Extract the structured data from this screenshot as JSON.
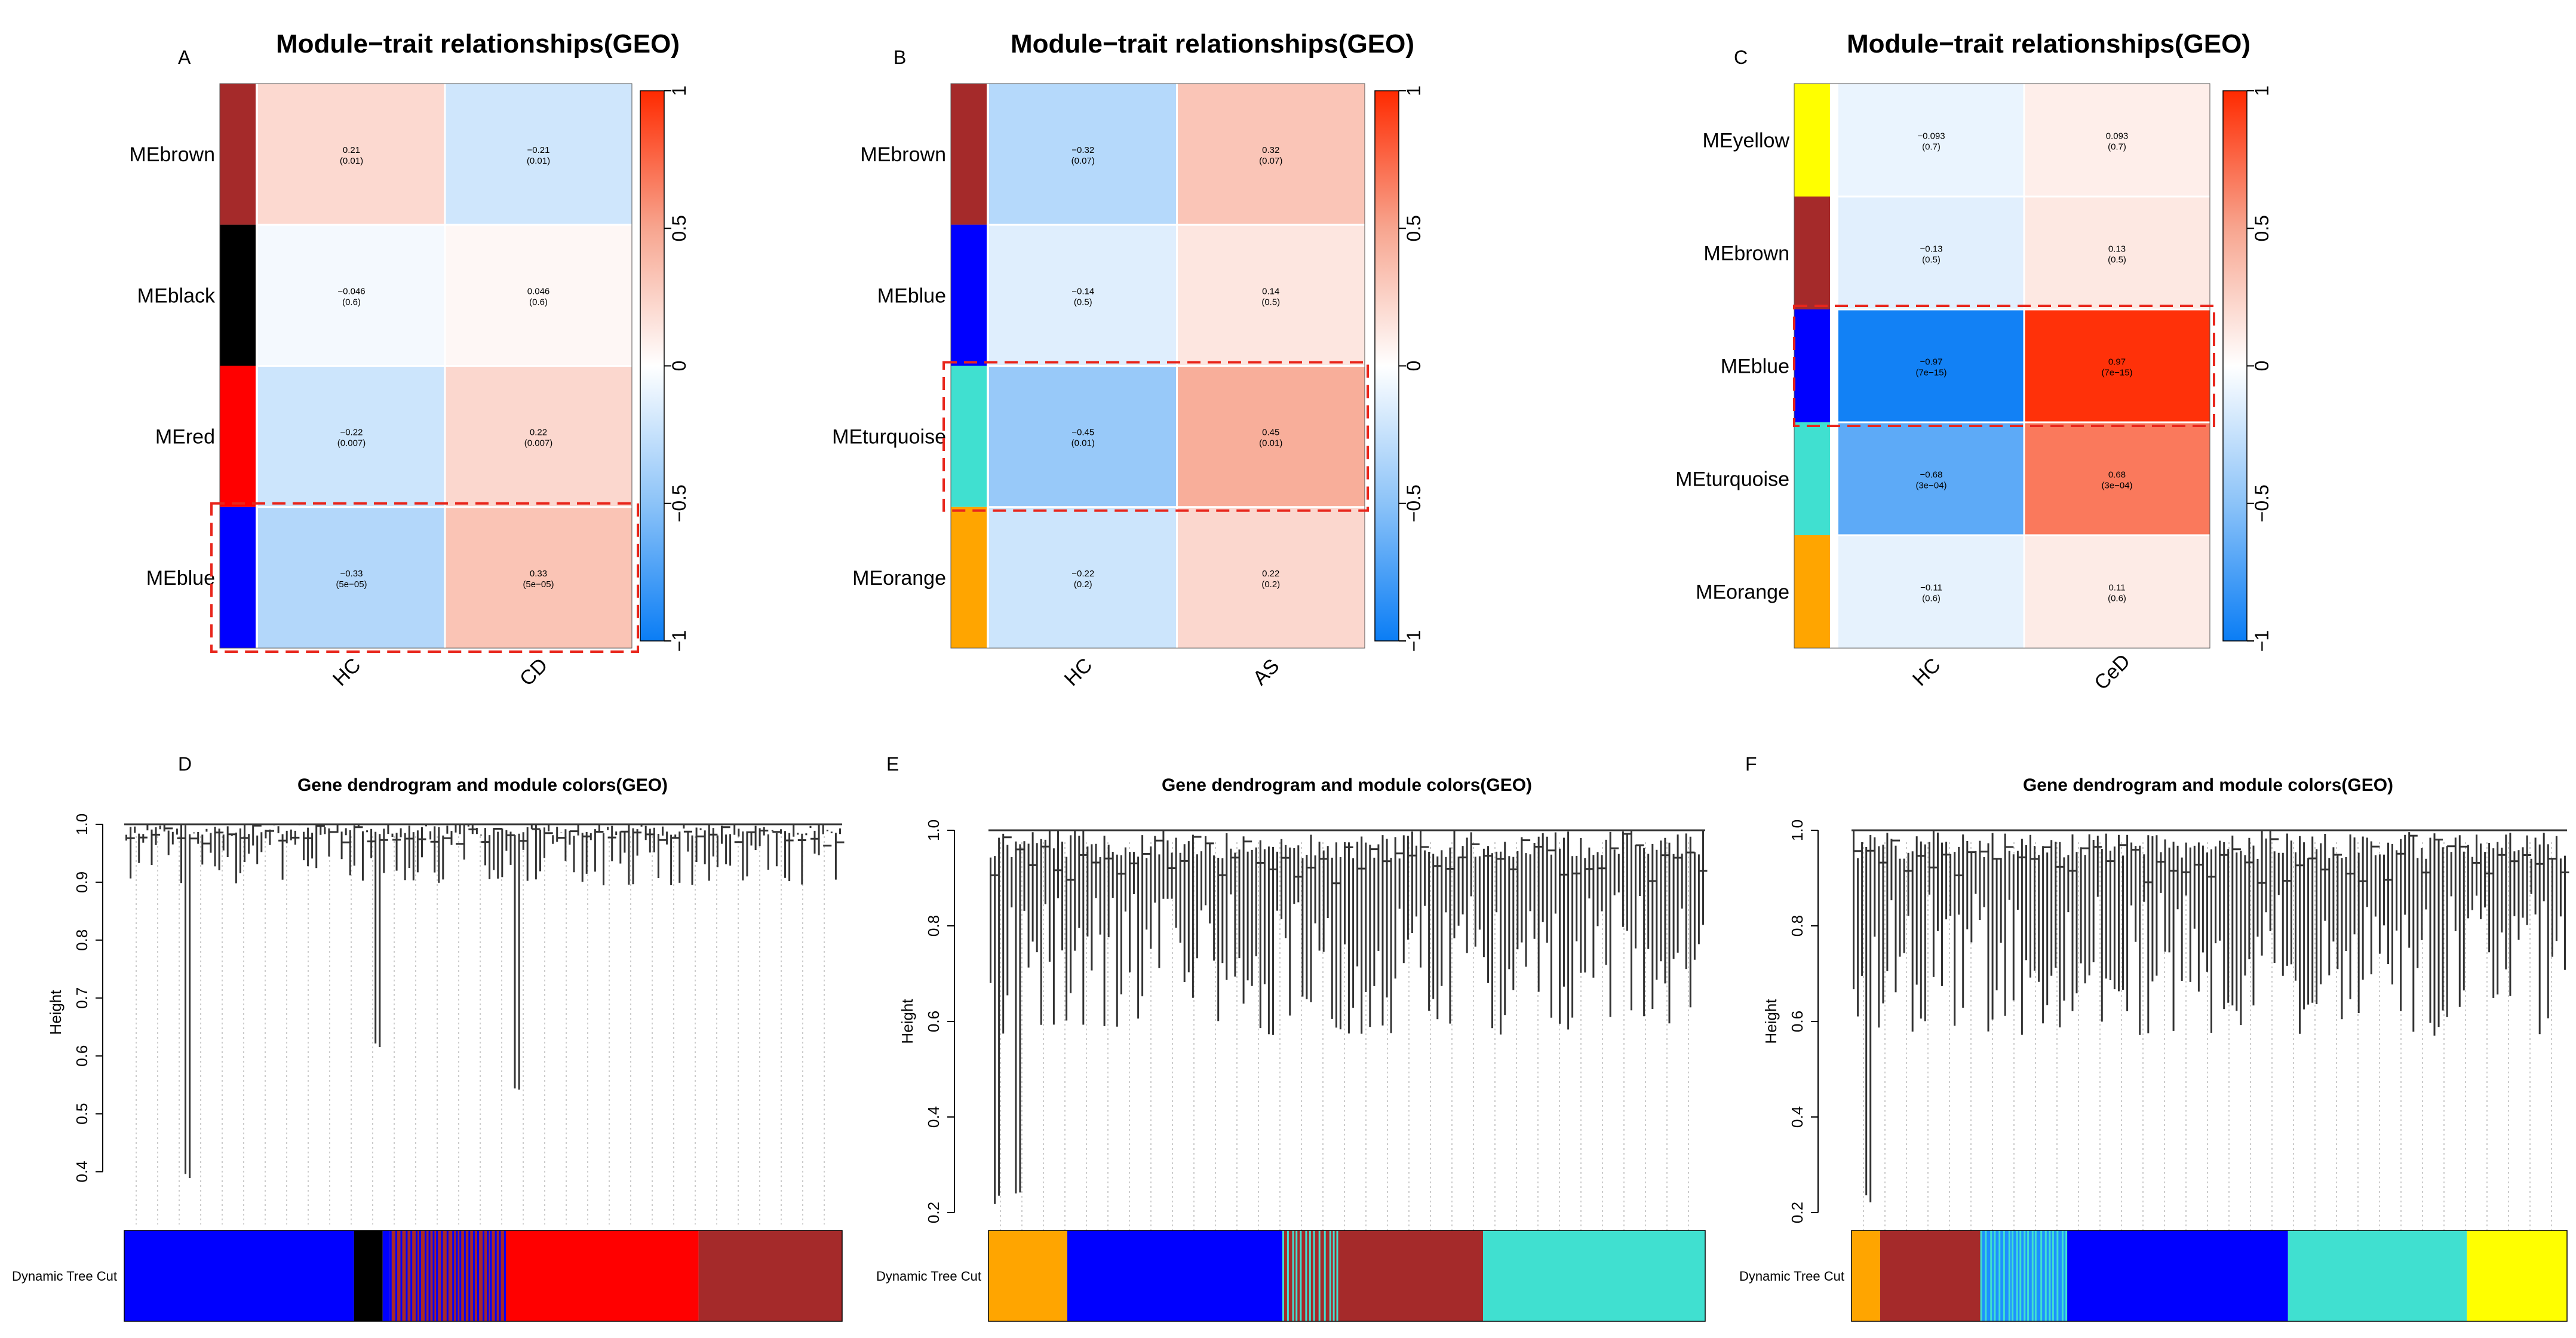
{
  "chart_data": [
    {
      "panel": "A",
      "type": "heatmap",
      "title": "Module−trait relationships(GEO)",
      "rows": [
        "MEbrown",
        "MEblack",
        "MEred",
        "MEblue"
      ],
      "row_colors": [
        "#a52a2a",
        "#000000",
        "#ff0000",
        "#0000ff"
      ],
      "columns": [
        "HC",
        "CD"
      ],
      "values": [
        [
          0.21,
          -0.21
        ],
        [
          -0.046,
          0.046
        ],
        [
          -0.22,
          0.22
        ],
        [
          -0.33,
          0.33
        ]
      ],
      "labels": [
        [
          "0.21",
          "−0.21"
        ],
        [
          "−0.046",
          "0.046"
        ],
        [
          "−0.22",
          "0.22"
        ],
        [
          "−0.33",
          "0.33"
        ]
      ],
      "pvalues": [
        [
          "(0.01)",
          "(0.01)"
        ],
        [
          "(0.6)",
          "(0.6)"
        ],
        [
          "(0.007)",
          "(0.007)"
        ],
        [
          "(5e−05)",
          "(5e−05)"
        ]
      ],
      "highlight_row": 3,
      "colorbar_ticks": [
        "1",
        "0.5",
        "0",
        "−0.5",
        "−1"
      ],
      "colorbar_range": [
        -1,
        1
      ]
    },
    {
      "panel": "B",
      "type": "heatmap",
      "title": "Module−trait relationships(GEO)",
      "rows": [
        "MEbrown",
        "MEblue",
        "MEturquoise",
        "MEorange"
      ],
      "row_colors": [
        "#a52a2a",
        "#0000ff",
        "#40e0d0",
        "#ffa500"
      ],
      "columns": [
        "HC",
        "AS"
      ],
      "values": [
        [
          -0.32,
          0.32
        ],
        [
          -0.14,
          0.14
        ],
        [
          -0.45,
          0.45
        ],
        [
          -0.22,
          0.22
        ]
      ],
      "labels": [
        [
          "−0.32",
          "0.32"
        ],
        [
          "−0.14",
          "0.14"
        ],
        [
          "−0.45",
          "0.45"
        ],
        [
          "−0.22",
          "0.22"
        ]
      ],
      "pvalues": [
        [
          "(0.07)",
          "(0.07)"
        ],
        [
          "(0.5)",
          "(0.5)"
        ],
        [
          "(0.01)",
          "(0.01)"
        ],
        [
          "(0.2)",
          "(0.2)"
        ]
      ],
      "highlight_row": 2,
      "colorbar_ticks": [
        "1",
        "0.5",
        "0",
        "−0.5",
        "−1"
      ],
      "colorbar_range": [
        -1,
        1
      ]
    },
    {
      "panel": "C",
      "type": "heatmap",
      "title": "Module−trait relationships(GEO)",
      "rows": [
        "MEyellow",
        "MEbrown",
        "MEblue",
        "MEturquoise",
        "MEorange"
      ],
      "row_colors": [
        "#ffff00",
        "#a52a2a",
        "#0000ff",
        "#40e0d0",
        "#ffa500"
      ],
      "columns": [
        "HC",
        "CeD"
      ],
      "values": [
        [
          -0.093,
          0.093
        ],
        [
          -0.13,
          0.13
        ],
        [
          -0.97,
          0.97
        ],
        [
          -0.68,
          0.68
        ],
        [
          -0.11,
          0.11
        ]
      ],
      "labels": [
        [
          "−0.093",
          "0.093"
        ],
        [
          "−0.13",
          "0.13"
        ],
        [
          "−0.97",
          "0.97"
        ],
        [
          "−0.68",
          "0.68"
        ],
        [
          "−0.11",
          "0.11"
        ]
      ],
      "pvalues": [
        [
          "(0.7)",
          "(0.7)"
        ],
        [
          "(0.5)",
          "(0.5)"
        ],
        [
          "(7e−15)",
          "(7e−15)"
        ],
        [
          "(3e−04)",
          "(3e−04)"
        ],
        [
          "(0.6)",
          "(0.6)"
        ]
      ],
      "highlight_row": 2,
      "colorbar_ticks": [
        "1",
        "0.5",
        "0",
        "−0.5",
        "−1"
      ],
      "colorbar_range": [
        -1,
        1
      ]
    },
    {
      "panel": "D",
      "type": "dendrogram",
      "title": "Gene dendrogram and module colors(GEO)",
      "ylabel": "Height",
      "ylim": [
        0.35,
        1.0
      ],
      "yticks": [
        0.4,
        0.5,
        0.6,
        0.7,
        0.8,
        0.9,
        1.0
      ],
      "ytick_labels": [
        "0.4",
        "0.5",
        "0.6",
        "0.7",
        "0.8",
        "0.9",
        "1.0"
      ],
      "color_bar_label": "Dynamic Tree Cut",
      "module_bar": [
        {
          "color": "#0000ff",
          "from": 0.0,
          "to": 0.32
        },
        {
          "color": "#000000",
          "from": 0.32,
          "to": 0.36
        },
        {
          "color": "#0000ff",
          "from": 0.36,
          "to": 0.37
        },
        {
          "color": "#a52a2a",
          "from": 0.37,
          "to": 0.53
        },
        {
          "color": "#ff0000",
          "from": 0.53,
          "to": 0.8
        },
        {
          "color": "#a52a2a",
          "from": 0.8,
          "to": 1.0
        }
      ],
      "stripes": {
        "from": 0.37,
        "to": 0.53,
        "color": "#0000ff"
      }
    },
    {
      "panel": "E",
      "type": "dendrogram",
      "title": "Gene dendrogram and module colors(GEO)",
      "ylabel": "Height",
      "ylim": [
        0.2,
        1.0
      ],
      "yticks": [
        0.2,
        0.4,
        0.6,
        0.8,
        1.0
      ],
      "ytick_labels": [
        "0.2",
        "0.4",
        "0.6",
        "0.8",
        "1.0"
      ],
      "color_bar_label": "Dynamic Tree Cut",
      "module_bar": [
        {
          "color": "#ffa500",
          "from": 0.0,
          "to": 0.11
        },
        {
          "color": "#0000ff",
          "from": 0.11,
          "to": 0.41
        },
        {
          "color": "#a52a2a",
          "from": 0.41,
          "to": 0.49
        },
        {
          "color": "#a52a2a",
          "from": 0.49,
          "to": 0.69
        },
        {
          "color": "#40e0d0",
          "from": 0.69,
          "to": 1.0
        }
      ],
      "stripes": {
        "from": 0.41,
        "to": 0.49,
        "color": "#40e0d0"
      }
    },
    {
      "panel": "F",
      "type": "dendrogram",
      "title": "Gene dendrogram and module colors(GEO)",
      "ylabel": "Height",
      "ylim": [
        0.2,
        1.0
      ],
      "yticks": [
        0.2,
        0.4,
        0.6,
        0.8,
        1.0
      ],
      "ytick_labels": [
        "0.2",
        "0.4",
        "0.6",
        "0.8",
        "1.0"
      ],
      "color_bar_label": "Dynamic Tree Cut",
      "module_bar": [
        {
          "color": "#ffa500",
          "from": 0.0,
          "to": 0.04
        },
        {
          "color": "#a52a2a",
          "from": 0.04,
          "to": 0.18
        },
        {
          "color": "#1e90ff",
          "from": 0.18,
          "to": 0.3
        },
        {
          "color": "#0000ff",
          "from": 0.3,
          "to": 0.61
        },
        {
          "color": "#40e0d0",
          "from": 0.61,
          "to": 0.86
        },
        {
          "color": "#ffff00",
          "from": 0.86,
          "to": 1.0
        }
      ],
      "stripes": {
        "from": 0.18,
        "to": 0.3,
        "color": "#40e0d0"
      }
    }
  ]
}
